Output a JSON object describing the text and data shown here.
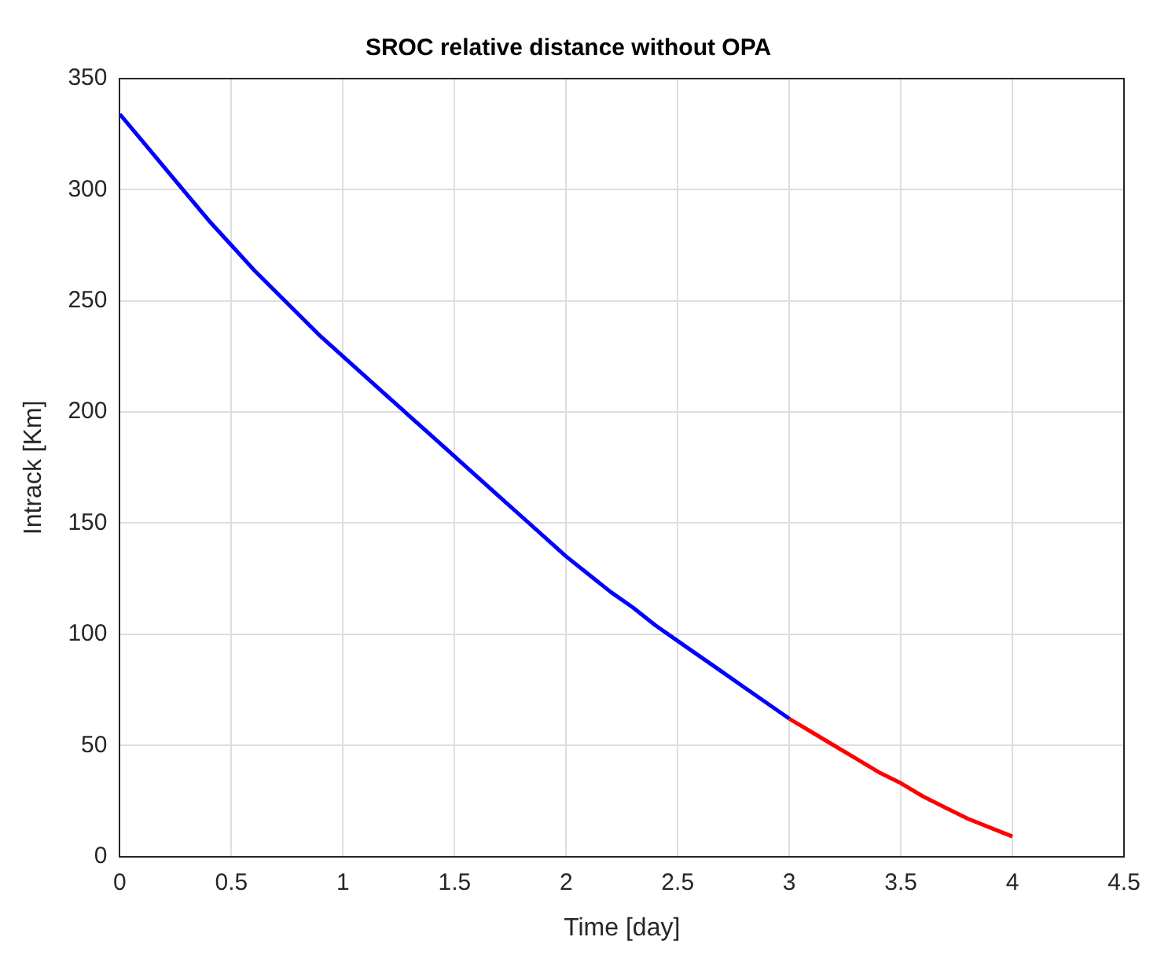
{
  "chart_data": {
    "type": "line",
    "title": "SROC relative distance without OPA",
    "xlabel": "Time [day]",
    "ylabel": "Intrack [Km]",
    "xlim": [
      0,
      4.5
    ],
    "xticks": [
      0,
      0.5,
      1,
      1.5,
      2,
      2.5,
      3,
      3.5,
      4,
      4.5
    ],
    "ylim": [
      0,
      350
    ],
    "yticks": [
      0,
      50,
      100,
      150,
      200,
      250,
      300,
      350
    ],
    "grid": true,
    "marker": "none",
    "line_style": "solid",
    "series": [
      {
        "color": "#0000ff",
        "x": [
          0,
          0.1,
          0.2,
          0.3,
          0.4,
          0.5,
          0.6,
          0.7,
          0.8,
          0.9,
          1,
          1.1,
          1.2,
          1.3,
          1.4,
          1.5,
          1.6,
          1.7,
          1.8,
          1.9,
          2,
          2.1,
          2.2,
          2.3,
          2.4,
          2.5,
          2.6,
          2.7,
          2.8,
          2.9,
          3
        ],
        "values": [
          334,
          322,
          310,
          298,
          286,
          275,
          264,
          254,
          244,
          234,
          225,
          216,
          207,
          198,
          189,
          180,
          171,
          162,
          153,
          144,
          135,
          127,
          119,
          112,
          104,
          97,
          90,
          83,
          76,
          69,
          62
        ]
      },
      {
        "color": "#ff0000",
        "x": [
          3,
          3.1,
          3.2,
          3.3,
          3.4,
          3.5,
          3.6,
          3.7,
          3.8,
          3.9,
          4
        ],
        "values": [
          62,
          56,
          50,
          44,
          38,
          33,
          27,
          22,
          17,
          13,
          9
        ]
      }
    ]
  }
}
